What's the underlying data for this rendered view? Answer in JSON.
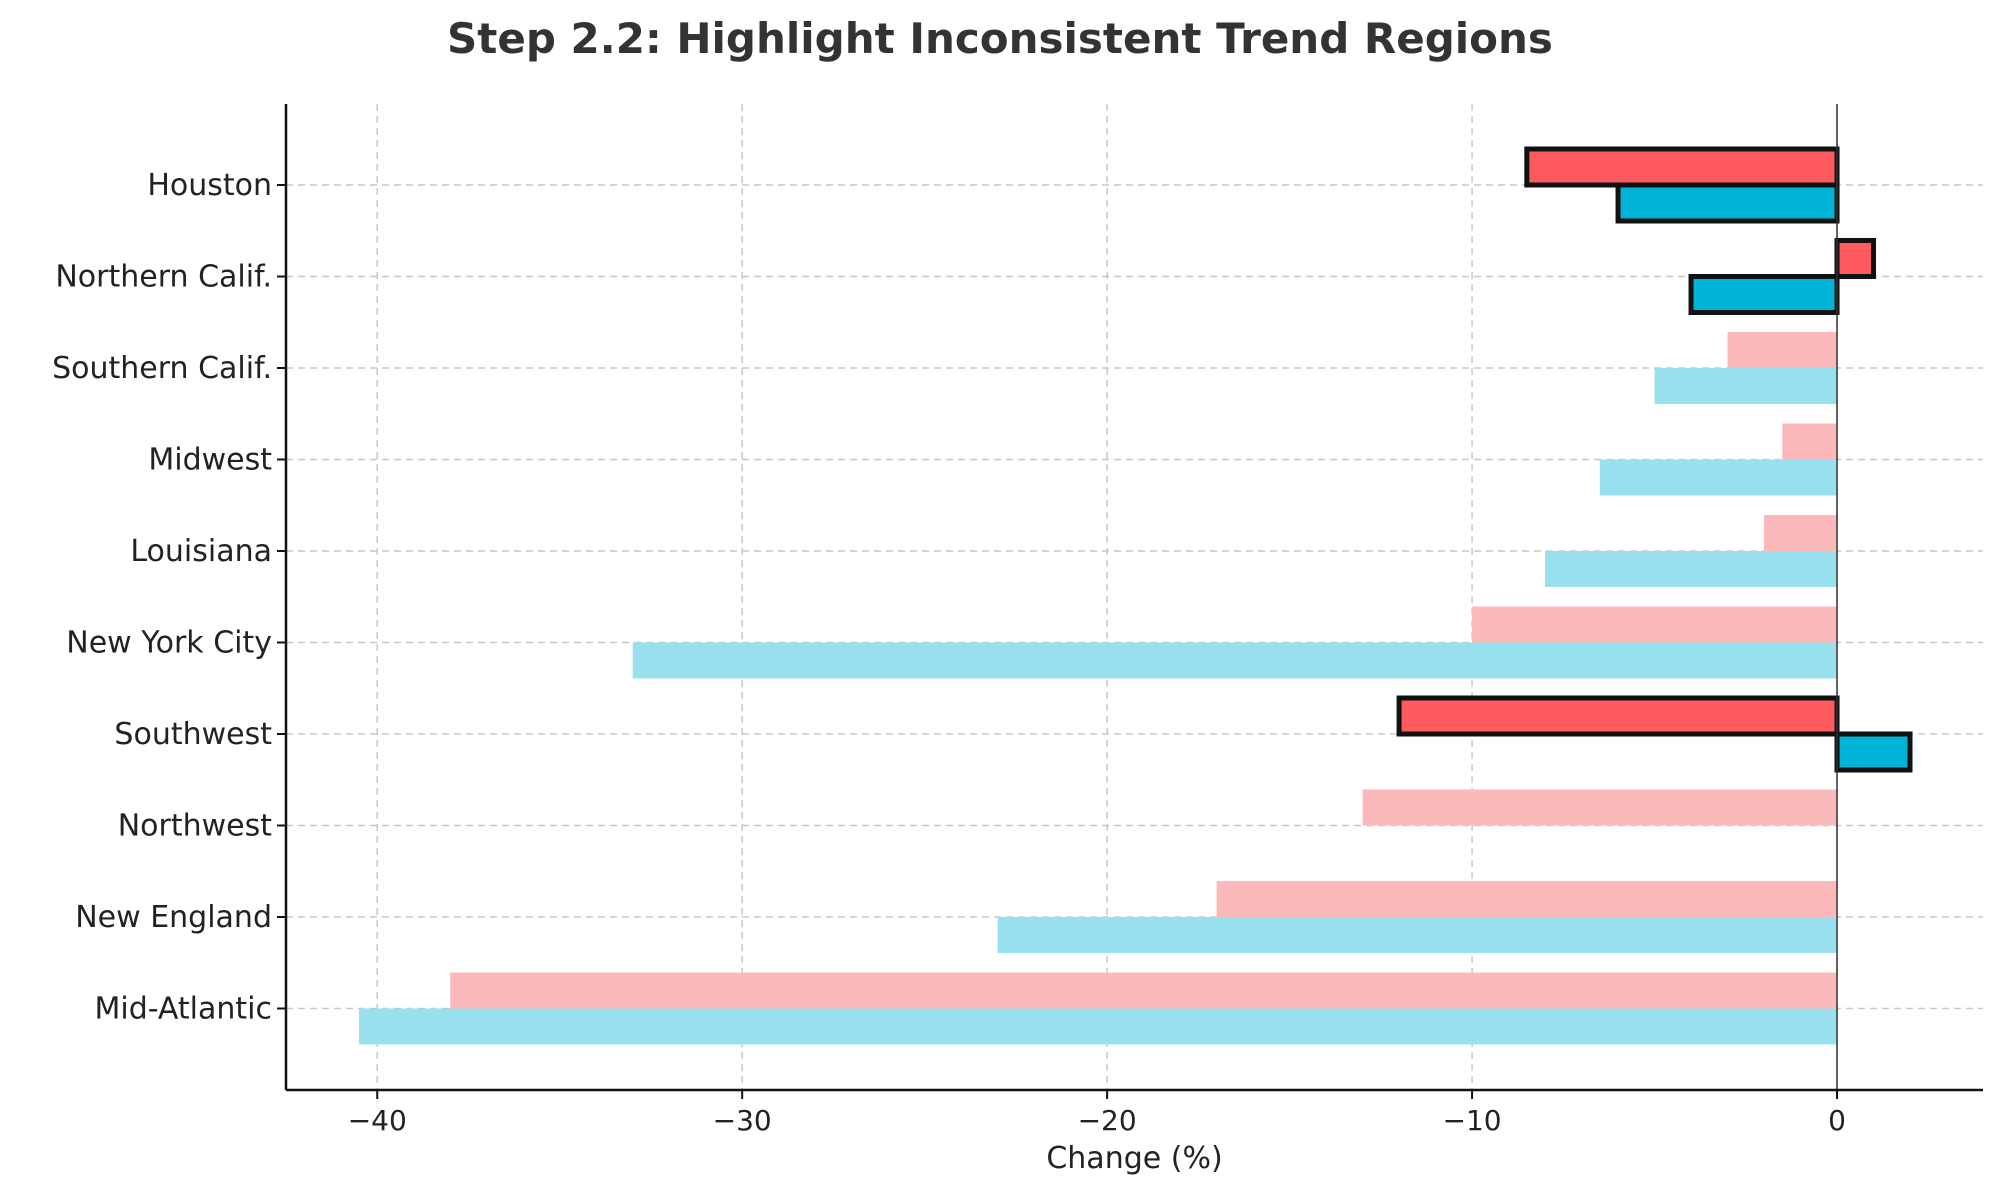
{
  "chart_data": {
    "type": "bar",
    "orientation": "horizontal",
    "title": "Step 2.2: Highlight Inconsistent Trend Regions",
    "xlabel": "Change (%)",
    "ylabel": "",
    "xlim": [
      -42.5,
      4
    ],
    "xticks": [
      -40,
      -30,
      -20,
      -10,
      0
    ],
    "xtick_labels": [
      "−40",
      "−30",
      "−20",
      "−10",
      "0"
    ],
    "grid": true,
    "legend": "none",
    "categories": [
      "Houston",
      "Northern Calif.",
      "Southern Calif.",
      "Midwest",
      "Louisiana",
      "New York City",
      "Southwest",
      "Northwest",
      "New England",
      "Mid-Atlantic"
    ],
    "series": [
      {
        "color": "#ff5a5f",
        "faded_color": "#fbb9bc",
        "values": [
          -8.5,
          1.0,
          -3.0,
          -1.5,
          -2.0,
          -10.0,
          -12.0,
          -13.0,
          -17.0,
          -38.0
        ]
      },
      {
        "color": "#00b4d8",
        "faded_color": "#98e0ee",
        "values": [
          -6.0,
          -4.0,
          -5.0,
          -6.5,
          -8.0,
          -33.0,
          2.0,
          0.0,
          -23.0,
          -40.5
        ]
      }
    ],
    "highlighted": [
      "Houston",
      "Northern Calif.",
      "Southwest"
    ]
  }
}
